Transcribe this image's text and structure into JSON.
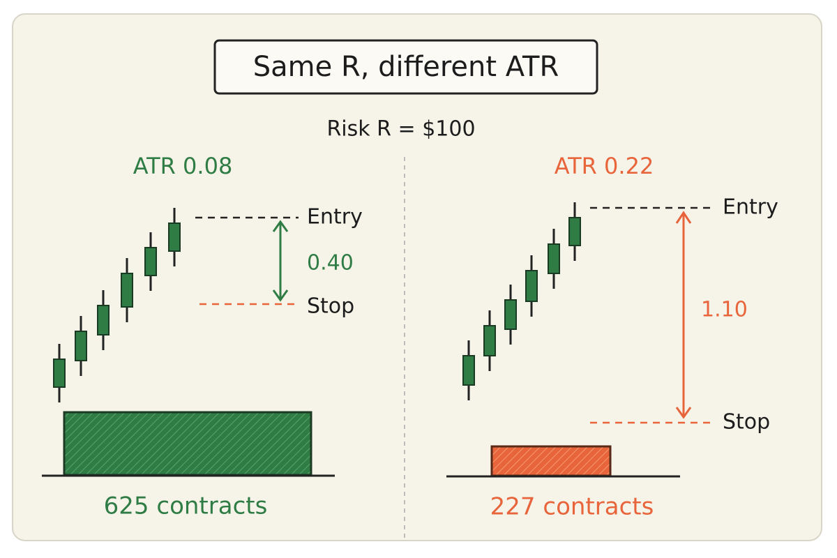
{
  "title": "Same R, different ATR",
  "subtitle": "Risk R = $100",
  "panels": [
    {
      "atr_label": "ATR 0.08",
      "entry_label": "Entry",
      "stop_label": "Stop",
      "distance_label": "0.40",
      "size_label": "625 contracts"
    },
    {
      "atr_label": "ATR 0.22",
      "entry_label": "Entry",
      "stop_label": "Stop",
      "distance_label": "1.10",
      "size_label": "227 contracts"
    }
  ]
}
